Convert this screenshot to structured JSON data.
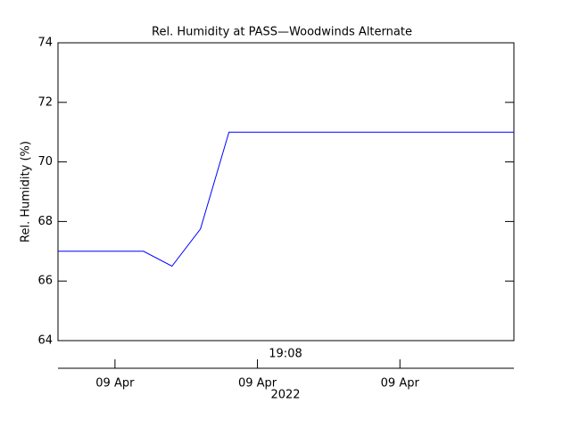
{
  "chart_data": {
    "type": "line",
    "title": "Rel. Humidity at PASS—Woodwinds Alternate",
    "ylabel": "Rel. Humidity (%)",
    "xlabel": "19:08",
    "xlabel2": "2022",
    "x": [
      0,
      3,
      4,
      5,
      6,
      16
    ],
    "series": [
      {
        "name": "Rel. Humidity",
        "color": "#0000ff",
        "values": [
          67,
          67,
          66.5,
          67.75,
          71,
          71
        ]
      }
    ],
    "xlim": [
      0,
      16
    ],
    "xticks": [
      {
        "value": 2,
        "label": "09 Apr"
      },
      {
        "value": 7,
        "label": "09 Apr"
      },
      {
        "value": 12,
        "label": "09 Apr"
      }
    ],
    "ylim": [
      64,
      74
    ],
    "yticks": [
      64,
      66,
      68,
      70,
      72,
      74
    ],
    "grid": false
  }
}
